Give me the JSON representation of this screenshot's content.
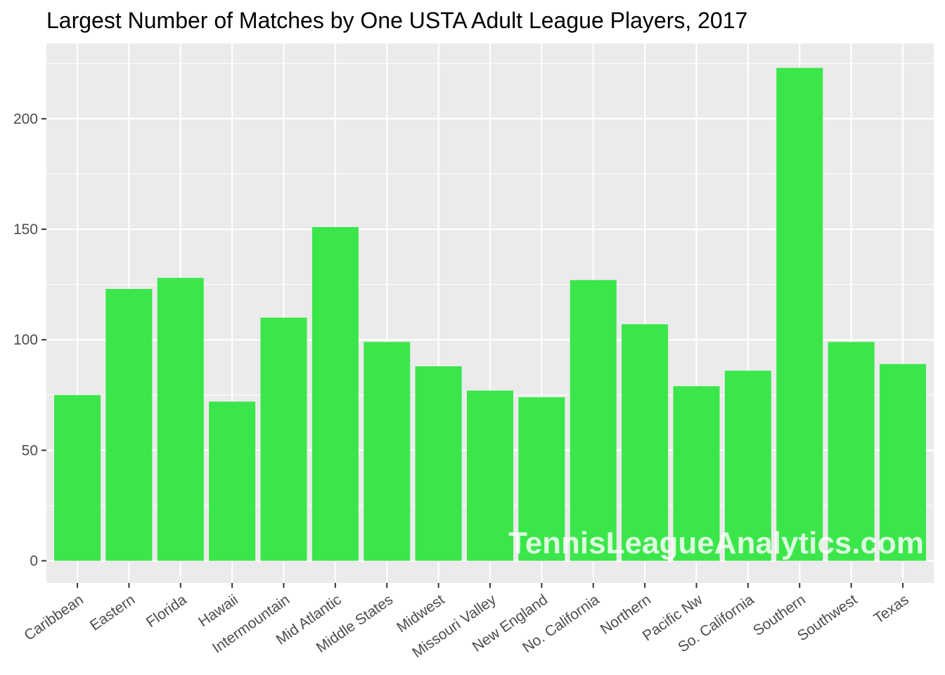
{
  "chart_data": {
    "type": "bar",
    "title": "Largest Number of Matches by One USTA Adult League Players, 2017",
    "xlabel": "",
    "ylabel": "",
    "categories": [
      "Caribbean",
      "Eastern",
      "Florida",
      "Hawaii",
      "Intermountain",
      "Mid Atlantic",
      "Middle States",
      "Midwest",
      "Missouri Valley",
      "New England",
      "No. California",
      "Northern",
      "Pacific Nw",
      "So. California",
      "Southern",
      "Southwest",
      "Texas"
    ],
    "values": [
      75,
      123,
      128,
      72,
      110,
      151,
      99,
      88,
      77,
      74,
      127,
      107,
      79,
      86,
      223,
      99,
      89
    ],
    "ylim": [
      -10,
      234
    ],
    "yticks": [
      0,
      50,
      100,
      150,
      200
    ],
    "grid": true,
    "bar_color": "#3be64b",
    "panel_color": "#ebebeb",
    "gridline_color": "#ffffff",
    "watermark": "TennisLeagueAnalytics.com"
  }
}
